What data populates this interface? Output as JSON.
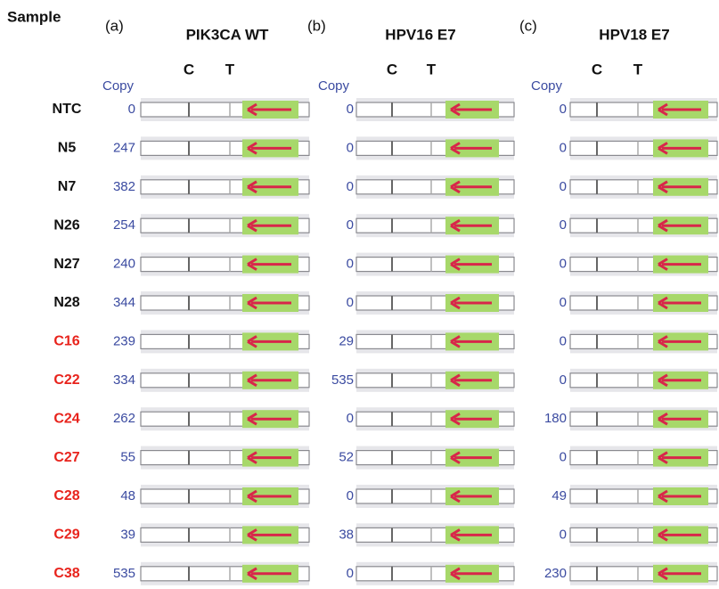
{
  "header": "Sample",
  "copy_label": "Copy",
  "line_labels": [
    "C",
    "T"
  ],
  "panels": [
    {
      "letter": "(a)",
      "title": "PIK3CA WT",
      "copies": [
        0,
        247,
        382,
        254,
        240,
        344,
        239,
        334,
        262,
        55,
        48,
        39,
        535
      ]
    },
    {
      "letter": "(b)",
      "title": "HPV16 E7",
      "copies": [
        0,
        0,
        0,
        0,
        0,
        0,
        29,
        535,
        0,
        52,
        0,
        38,
        0
      ]
    },
    {
      "letter": "(c)",
      "title": "HPV18 E7",
      "copies": [
        0,
        0,
        0,
        0,
        0,
        0,
        0,
        0,
        180,
        0,
        49,
        0,
        230
      ]
    }
  ],
  "samples": [
    {
      "label": "NTC",
      "color": "#111111"
    },
    {
      "label": "N5",
      "color": "#111111"
    },
    {
      "label": "N7",
      "color": "#111111"
    },
    {
      "label": "N26",
      "color": "#111111"
    },
    {
      "label": "N27",
      "color": "#111111"
    },
    {
      "label": "N28",
      "color": "#111111"
    },
    {
      "label": "C16",
      "color": "#e8231c"
    },
    {
      "label": "C22",
      "color": "#e8231c"
    },
    {
      "label": "C24",
      "color": "#e8231c"
    },
    {
      "label": "C27",
      "color": "#e8231c"
    },
    {
      "label": "C28",
      "color": "#e8231c"
    },
    {
      "label": "C29",
      "color": "#e8231c"
    },
    {
      "label": "C38",
      "color": "#e8231c"
    }
  ]
}
